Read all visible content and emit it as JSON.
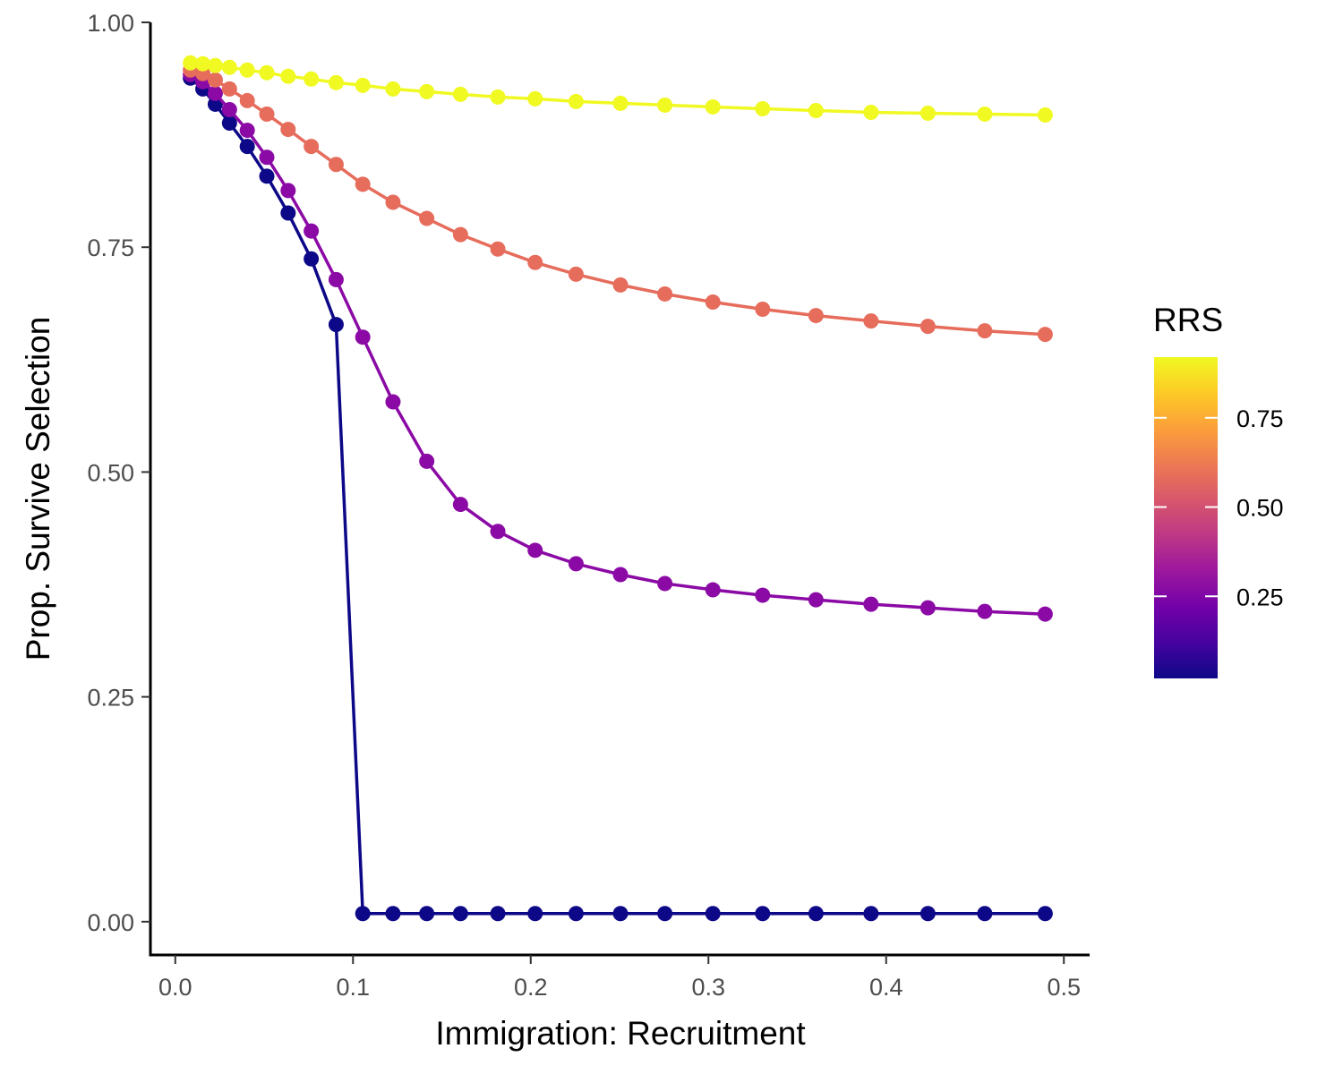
{
  "chart_data": {
    "type": "line",
    "xlabel": "Immigration: Recruitment",
    "ylabel": "Prop. Survive Selection",
    "xlim": [
      -0.014,
      0.515
    ],
    "ylim": [
      -0.037,
      1.0
    ],
    "x_ticks": [
      "0.0",
      "0.1",
      "0.2",
      "0.3",
      "0.4",
      "0.5"
    ],
    "x_tick_values": [
      0.0,
      0.1,
      0.2,
      0.3,
      0.4,
      0.5
    ],
    "y_ticks": [
      "0.00",
      "0.25",
      "0.50",
      "0.75",
      "1.00"
    ],
    "y_tick_values": [
      0.0,
      0.25,
      0.5,
      0.75,
      1.0
    ],
    "grid": false,
    "x": [
      0.0085,
      0.0155,
      0.0225,
      0.0305,
      0.0405,
      0.0515,
      0.0635,
      0.0765,
      0.0905,
      0.1055,
      0.1225,
      0.1415,
      0.1605,
      0.1815,
      0.2025,
      0.2255,
      0.2505,
      0.2755,
      0.3025,
      0.3305,
      0.3605,
      0.3915,
      0.4235,
      0.4555,
      0.4895
    ],
    "series": [
      {
        "rrs": 0.02,
        "color": "#0d0887",
        "values": [
          0.938,
          0.926,
          0.909,
          0.888,
          0.862,
          0.829,
          0.788,
          0.737,
          0.664,
          0.009,
          0.009,
          0.009,
          0.009,
          0.009,
          0.009,
          0.009,
          0.009,
          0.009,
          0.009,
          0.009,
          0.009,
          0.009,
          0.009,
          0.009,
          0.009
        ]
      },
      {
        "rrs": 0.3,
        "color": "#8b0aa5",
        "values": [
          0.942,
          0.934,
          0.921,
          0.903,
          0.88,
          0.85,
          0.813,
          0.768,
          0.714,
          0.65,
          0.578,
          0.512,
          0.464,
          0.434,
          0.413,
          0.398,
          0.386,
          0.376,
          0.369,
          0.363,
          0.358,
          0.353,
          0.349,
          0.345,
          0.342
        ]
      },
      {
        "rrs": 0.6,
        "color": "#e66c5c",
        "values": [
          0.947,
          0.943,
          0.936,
          0.926,
          0.913,
          0.898,
          0.881,
          0.862,
          0.842,
          0.82,
          0.8,
          0.782,
          0.764,
          0.748,
          0.733,
          0.72,
          0.708,
          0.698,
          0.689,
          0.681,
          0.674,
          0.668,
          0.662,
          0.657,
          0.653
        ]
      },
      {
        "rrs": 0.9,
        "color": "#f0f921",
        "values": [
          0.955,
          0.954,
          0.952,
          0.95,
          0.947,
          0.944,
          0.94,
          0.937,
          0.933,
          0.93,
          0.926,
          0.923,
          0.92,
          0.917,
          0.915,
          0.912,
          0.91,
          0.908,
          0.906,
          0.904,
          0.902,
          0.9,
          0.899,
          0.898,
          0.897
        ]
      }
    ],
    "legend": {
      "title": "RRS",
      "placement": "right",
      "range": [
        0.02,
        0.92
      ],
      "breaks": [
        0.25,
        0.5,
        0.75
      ],
      "labels": [
        "0.75",
        "0.50",
        "0.25"
      ],
      "colors": [
        "#0d0887",
        "#46039f",
        "#7201a8",
        "#9c179e",
        "#bd3786",
        "#d8576b",
        "#ed7953",
        "#fb9f3a",
        "#fdca26",
        "#f0f921"
      ]
    }
  }
}
